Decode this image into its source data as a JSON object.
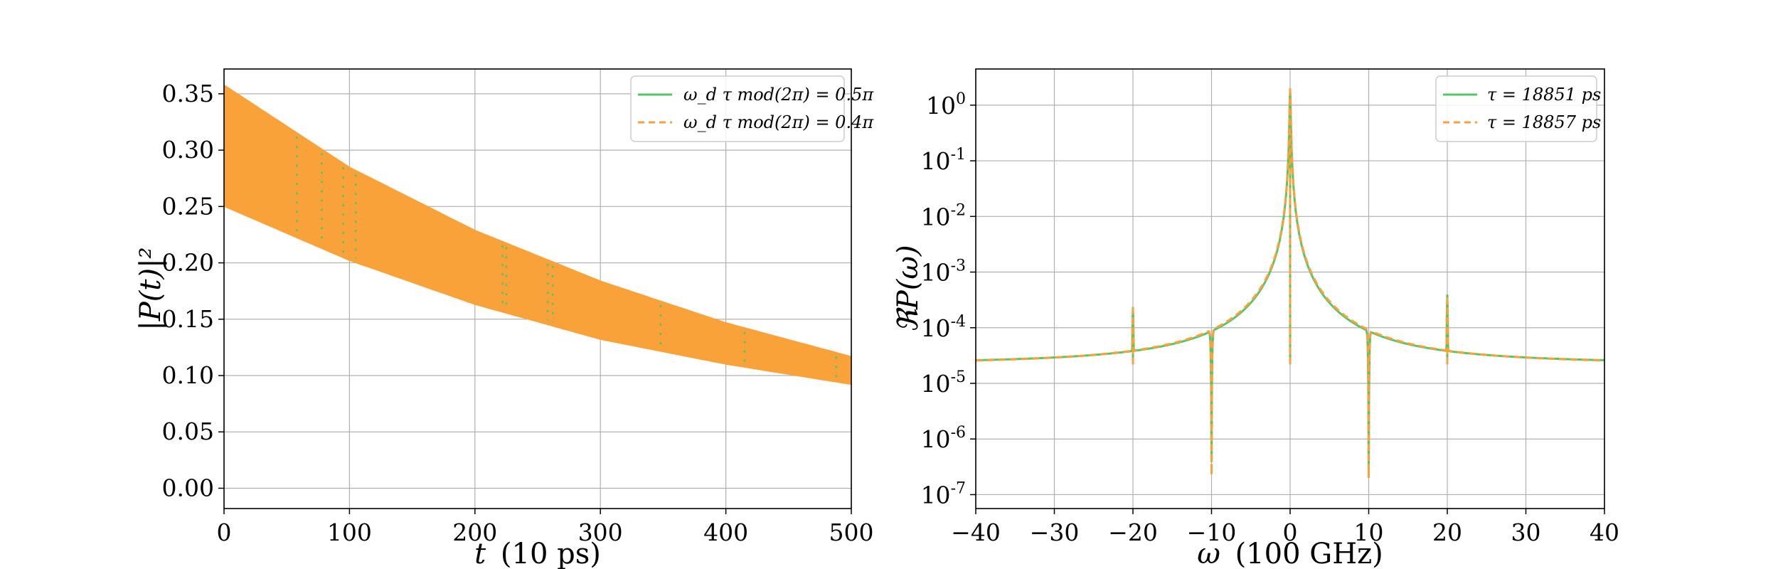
{
  "colors": {
    "green": "#55c667",
    "orange": "#f9a23a",
    "grid": "#b0b0b0"
  },
  "chart_data": [
    {
      "type": "area",
      "xlabel_var": "t",
      "xlabel_unit": "(10 ps)",
      "ylabel": "|P(t)|²",
      "xlim": [
        0,
        500
      ],
      "ylim": [
        -0.018,
        0.372
      ],
      "grid": true,
      "legend_position": "top-right",
      "x_ticks": [
        0,
        100,
        200,
        300,
        400,
        500
      ],
      "x_tick_labels": [
        "0",
        "100",
        "200",
        "300",
        "400",
        "500"
      ],
      "y_ticks": [
        0.0,
        0.05,
        0.1,
        0.15,
        0.2,
        0.25,
        0.3,
        0.35
      ],
      "y_tick_labels": [
        "0.00",
        "0.05",
        "0.10",
        "0.15",
        "0.20",
        "0.25",
        "0.30",
        "0.35"
      ],
      "series": [
        {
          "name": "ω_d τ mod(2π) = 0.5π",
          "color": "#55c667",
          "style": "solid",
          "envelope_upper": [
            [
              0,
              0.358
            ],
            [
              100,
              0.285
            ],
            [
              200,
              0.229
            ],
            [
              300,
              0.184
            ],
            [
              400,
              0.147
            ],
            [
              500,
              0.117
            ]
          ],
          "envelope_lower": [
            [
              0,
              0.25
            ],
            [
              100,
              0.202
            ],
            [
              200,
              0.163
            ],
            [
              300,
              0.132
            ],
            [
              400,
              0.11
            ],
            [
              500,
              0.092
            ]
          ]
        },
        {
          "name": "ω_d τ mod(2π) = 0.4π",
          "color": "#f9a23a",
          "style": "dashed",
          "envelope_upper": [
            [
              0,
              0.358
            ],
            [
              100,
              0.285
            ],
            [
              200,
              0.229
            ],
            [
              300,
              0.184
            ],
            [
              400,
              0.147
            ],
            [
              500,
              0.117
            ]
          ],
          "envelope_lower": [
            [
              0,
              0.25
            ],
            [
              100,
              0.202
            ],
            [
              200,
              0.163
            ],
            [
              300,
              0.132
            ],
            [
              400,
              0.11
            ],
            [
              500,
              0.092
            ]
          ]
        }
      ],
      "visible_green_dash_x": [
        58,
        78,
        95,
        105,
        222,
        225,
        258,
        262,
        348,
        415,
        488
      ]
    },
    {
      "type": "line",
      "xlabel_var": "ω",
      "xlabel_unit": "(100 GHz)",
      "ylabel": "ℜP(ω)",
      "xlim": [
        -40,
        40
      ],
      "ylim_log10": [
        -7.25,
        0.65
      ],
      "yscale": "log",
      "grid": true,
      "legend_position": "top-right",
      "x_ticks": [
        -40,
        -30,
        -20,
        -10,
        0,
        10,
        20,
        30,
        40
      ],
      "x_tick_labels": [
        "−40",
        "−30",
        "−20",
        "−10",
        "0",
        "10",
        "20",
        "30",
        "40"
      ],
      "y_tick_exponents": [
        0,
        -1,
        -2,
        -3,
        -4,
        -5,
        -6,
        -7
      ],
      "y_tick_base": "10",
      "baseline": 2.2e-05,
      "series": [
        {
          "name": "τ = 18851 ps",
          "color": "#55c667",
          "style": "solid",
          "peaks": [
            {
              "x": 0,
              "y": 1.8
            },
            {
              "x": -10,
              "y": 4e-07
            },
            {
              "x": 10,
              "y": 3e-07
            },
            {
              "x": -20,
              "y": 0.00022
            },
            {
              "x": 20,
              "y": 0.00038
            }
          ]
        },
        {
          "name": "τ = 18857 ps",
          "color": "#f9a23a",
          "style": "dashed",
          "peaks": [
            {
              "x": 0,
              "y": 2.0
            },
            {
              "x": -10,
              "y": 2.3e-07
            },
            {
              "x": 10,
              "y": 2e-07
            },
            {
              "x": -20,
              "y": 0.00022
            },
            {
              "x": 20,
              "y": 0.00038
            }
          ]
        }
      ]
    }
  ]
}
